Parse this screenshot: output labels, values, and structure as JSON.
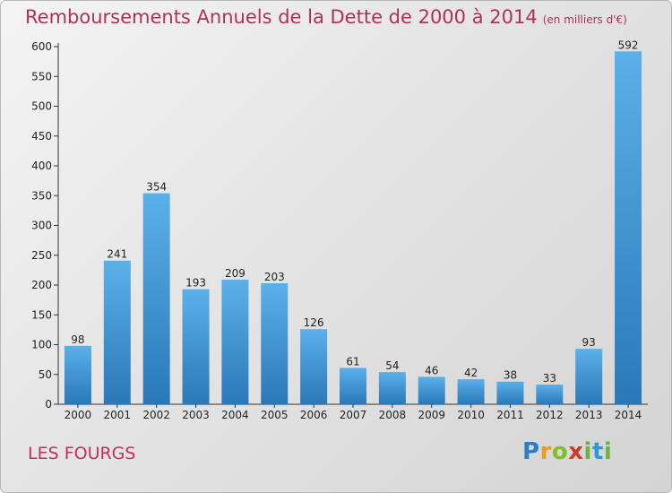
{
  "title": "Remboursements Annuels de la Dette de 2000 à 2014",
  "unit_note": "(en milliers d'€)",
  "commune": "LES FOURGS",
  "logo_text": "Proxiti",
  "chart_data": {
    "type": "bar",
    "title": "Remboursements Annuels de la Dette de 2000 à 2014",
    "subtitle": "(en milliers d'€)",
    "categories": [
      "2000",
      "2001",
      "2002",
      "2003",
      "2004",
      "2005",
      "2006",
      "2007",
      "2008",
      "2009",
      "2010",
      "2011",
      "2012",
      "2013",
      "2014"
    ],
    "values": [
      98,
      241,
      354,
      193,
      209,
      203,
      126,
      61,
      54,
      46,
      42,
      38,
      33,
      93,
      592
    ],
    "ylim": [
      0,
      600
    ],
    "yticks": [
      0,
      50,
      100,
      150,
      200,
      250,
      300,
      350,
      400,
      450,
      500,
      550,
      600
    ],
    "grid": false,
    "bar_color": "#4a9fdd",
    "bar_color_dark": "#2a78b8"
  }
}
